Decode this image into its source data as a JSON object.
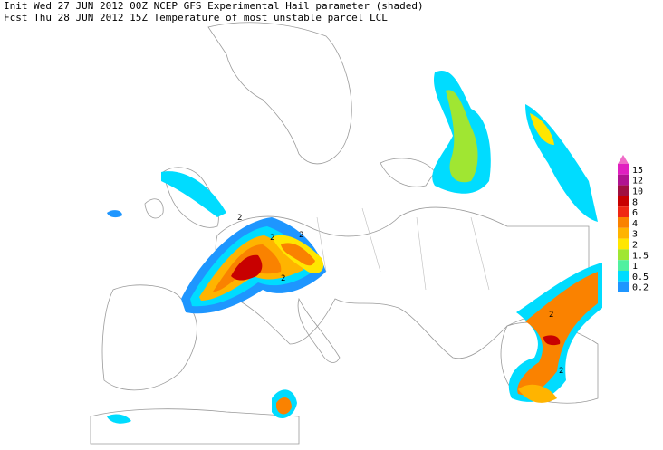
{
  "header": {
    "line1": "Init  Wed 27 JUN 2012 00Z  NCEP GFS Experimental Hail parameter (shaded)",
    "line2": "Fcst Thu 28 JUN 2012 15Z  Temperature of most unstable parcel LCL"
  },
  "legend": {
    "over_color": "#f06cc8",
    "items": [
      {
        "label": "15",
        "color": "#e020c0"
      },
      {
        "label": "12",
        "color": "#b01490"
      },
      {
        "label": "10",
        "color": "#a01040"
      },
      {
        "label": "8",
        "color": "#c80000"
      },
      {
        "label": "6",
        "color": "#f02814"
      },
      {
        "label": "4",
        "color": "#fa8200"
      },
      {
        "label": "3",
        "color": "#ffb400"
      },
      {
        "label": "2",
        "color": "#ffe600"
      },
      {
        "label": "1.5",
        "color": "#a0e632"
      },
      {
        "label": "1",
        "color": "#50f0a0"
      },
      {
        "label": "0.5",
        "color": "#00dcff"
      },
      {
        "label": "0.2",
        "color": "#1e96ff"
      }
    ]
  },
  "contour_labels": [
    "2",
    "2",
    "2",
    "2",
    "2",
    "2"
  ]
}
